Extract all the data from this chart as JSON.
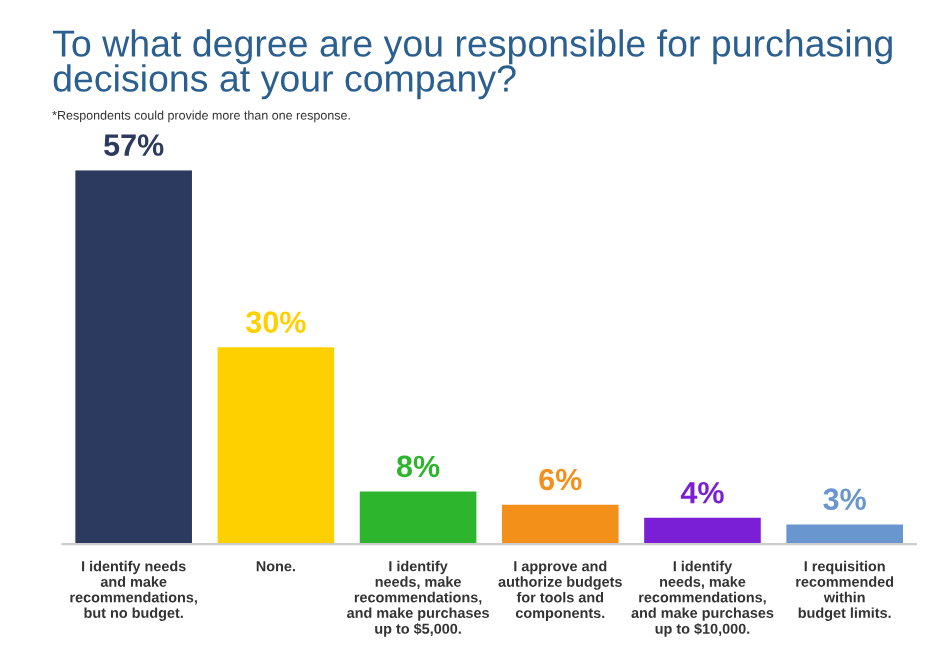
{
  "chart_data": {
    "type": "bar",
    "title": "To what degree are you responsible for purchasing\ndecisions at your company?",
    "subtitle": "*Respondents could provide more than one response.",
    "categories": [
      "I identify needs\nand make\nrecommendations,\nbut no budget.",
      "None.",
      "I identify\nneeds, make\nrecommendations,\nand make purchases\nup to $5,000.",
      "I approve and\nauthorize budgets\nfor tools and\ncomponents.",
      "I identify\nneeds, make\nrecommendations,\nand make purchases\nup to $10,000.",
      "I requisition\nrecommended\nwithin\nbudget limits."
    ],
    "values": [
      57,
      30,
      8,
      6,
      4,
      3
    ],
    "value_labels": [
      "57%",
      "30%",
      "8%",
      "6%",
      "4%",
      "3%"
    ],
    "colors": [
      "#2c3a5f",
      "#ffd000",
      "#2db52d",
      "#f39019",
      "#7a1fd6",
      "#6a96cf"
    ],
    "grid": false,
    "legend": false
  }
}
